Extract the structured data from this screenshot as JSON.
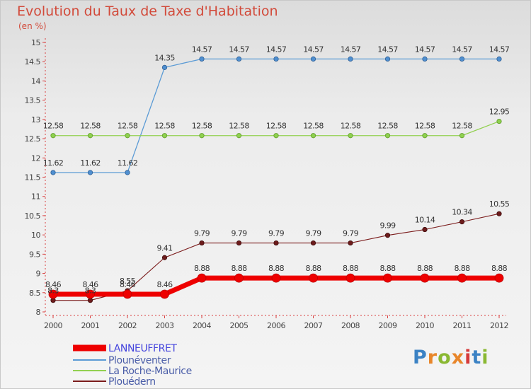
{
  "chart_data": {
    "type": "line",
    "title": "Evolution du Taux de Taxe d'Habitation",
    "ylabel": "(en %)",
    "x": [
      "2000",
      "2001",
      "2002",
      "2003",
      "2004",
      "2005",
      "2006",
      "2007",
      "2008",
      "2009",
      "2010",
      "2011",
      "2012"
    ],
    "ylim": [
      8,
      15
    ],
    "yticks": [
      8,
      8.5,
      9,
      9.5,
      10,
      10.5,
      11,
      11.5,
      12,
      12.5,
      13,
      13.5,
      14,
      14.5,
      15
    ],
    "grid": false,
    "legend_position": "bottom-left",
    "series": [
      {
        "name": "LANNEUFFRET",
        "color": "#ee0000",
        "values": [
          8.46,
          8.46,
          8.46,
          8.46,
          8.88,
          8.88,
          8.88,
          8.88,
          8.88,
          8.88,
          8.88,
          8.88,
          8.88
        ]
      },
      {
        "name": "Plounéventer",
        "color": "#5b9bd5",
        "values": [
          11.62,
          11.62,
          11.62,
          14.35,
          14.57,
          14.57,
          14.57,
          14.57,
          14.57,
          14.57,
          14.57,
          14.57,
          14.57
        ]
      },
      {
        "name": "La Roche-Maurice",
        "color": "#92d050",
        "values": [
          12.58,
          12.58,
          12.58,
          12.58,
          12.58,
          12.58,
          12.58,
          12.58,
          12.58,
          12.58,
          12.58,
          12.58,
          12.95
        ]
      },
      {
        "name": "Plouédern",
        "color": "#7b1c1c",
        "values": [
          8.3,
          8.3,
          8.55,
          9.41,
          9.79,
          9.79,
          9.79,
          9.79,
          9.79,
          9.99,
          10.14,
          10.34,
          10.55
        ]
      }
    ]
  },
  "logo": {
    "text": "Proxiti",
    "colors": [
      "#3b82c4",
      "#e8862a",
      "#8ab832",
      "#e8862a",
      "#d63a3a",
      "#3b82c4",
      "#8ab832"
    ]
  }
}
